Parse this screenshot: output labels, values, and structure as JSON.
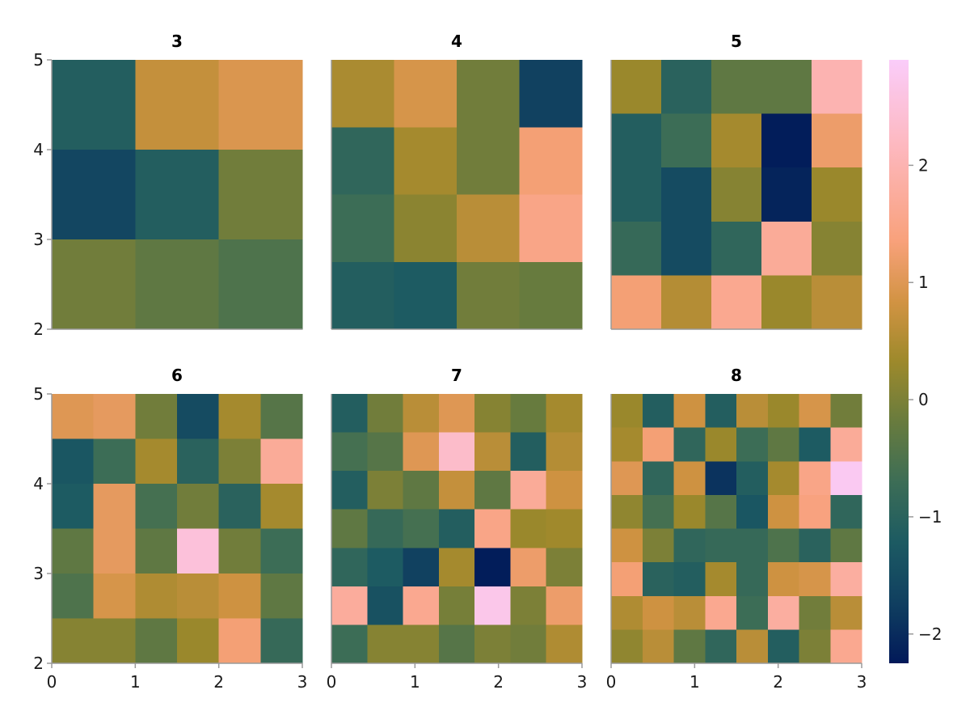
{
  "chart_data": [
    {
      "type": "heatmap",
      "title": "3",
      "n": 3,
      "xlim": [
        0,
        3
      ],
      "ylim": [
        2,
        5
      ],
      "xticks": [],
      "yticks": [
        "2",
        "3",
        "4",
        "5"
      ],
      "rows": [
        [
          -1.1,
          0.7,
          0.95
        ],
        [
          -1.6,
          -1.1,
          -0.1
        ],
        [
          -0.1,
          -0.3,
          -0.5
        ]
      ]
    },
    {
      "type": "heatmap",
      "title": "4",
      "n": 4,
      "xlim": [
        0,
        3
      ],
      "ylim": [
        2,
        5
      ],
      "xticks": [],
      "yticks": [],
      "rows": [
        [
          0.45,
          0.9,
          -0.1,
          -1.7
        ],
        [
          -0.9,
          0.4,
          -0.1,
          1.3
        ],
        [
          -0.7,
          0.15,
          0.6,
          1.5
        ],
        [
          -1.1,
          -1.2,
          -0.1,
          -0.2
        ]
      ]
    },
    {
      "type": "heatmap",
      "title": "5",
      "n": 5,
      "xlim": [
        0,
        3
      ],
      "ylim": [
        2,
        5
      ],
      "xticks": [],
      "yticks": [],
      "rows": [
        [
          0.3,
          -1.0,
          -0.3,
          -0.3,
          2.0
        ],
        [
          -1.1,
          -0.7,
          0.4,
          -2.2,
          1.2
        ],
        [
          -1.1,
          -1.5,
          0.1,
          -2.1,
          0.3
        ],
        [
          -0.8,
          -1.5,
          -0.9,
          1.7,
          0.1
        ],
        [
          1.3,
          0.55,
          1.6,
          0.3,
          0.6
        ]
      ]
    },
    {
      "type": "heatmap",
      "title": "6",
      "n": 6,
      "xlim": [
        0,
        3
      ],
      "ylim": [
        2,
        5
      ],
      "xticks": [
        "0",
        "1",
        "2",
        "3"
      ],
      "yticks": [
        "2",
        "3",
        "4",
        "5"
      ],
      "rows": [
        [
          1.0,
          1.1,
          -0.1,
          -1.5,
          0.4,
          -0.4
        ],
        [
          -1.3,
          -0.7,
          0.4,
          -1.0,
          0.0,
          1.7
        ],
        [
          -1.2,
          1.1,
          -0.6,
          -0.1,
          -1.0,
          0.4
        ],
        [
          -0.3,
          1.1,
          -0.3,
          2.5,
          -0.1,
          -0.7
        ],
        [
          -0.5,
          0.9,
          0.5,
          0.6,
          0.8,
          -0.3
        ],
        [
          0.1,
          0.1,
          -0.3,
          0.3,
          1.3,
          -0.8
        ]
      ]
    },
    {
      "type": "heatmap",
      "title": "7",
      "n": 7,
      "xlim": [
        0,
        3
      ],
      "ylim": [
        2,
        5
      ],
      "xticks": [
        "0",
        "1",
        "2",
        "3"
      ],
      "yticks": [],
      "rows": [
        [
          -1.1,
          -0.1,
          0.6,
          1.0,
          0.1,
          -0.2,
          0.4
        ],
        [
          -0.6,
          -0.4,
          1.0,
          2.3,
          0.6,
          -1.1,
          0.55
        ],
        [
          -1.1,
          0.0,
          -0.3,
          0.7,
          -0.3,
          1.7,
          0.8
        ],
        [
          -0.3,
          -0.8,
          -0.6,
          -1.1,
          1.5,
          0.3,
          0.35
        ],
        [
          -0.9,
          -1.2,
          -1.7,
          0.4,
          -2.2,
          1.2,
          0.0
        ],
        [
          1.75,
          -1.4,
          1.6,
          -0.05,
          2.7,
          0.0,
          1.2
        ],
        [
          -0.7,
          0.1,
          0.1,
          -0.4,
          0.0,
          -0.1,
          0.5
        ]
      ]
    },
    {
      "type": "heatmap",
      "title": "8",
      "n": 8,
      "xlim": [
        0,
        3
      ],
      "ylim": [
        2,
        5
      ],
      "xticks": [
        "0",
        "1",
        "2",
        "3"
      ],
      "yticks": [],
      "colorbar": {
        "ticks": [
          "−2",
          "−1",
          "0",
          "1",
          "2"
        ],
        "tick_values": [
          -2,
          -1,
          0,
          1,
          2
        ],
        "range": [
          -2.25,
          2.9
        ]
      },
      "rows": [
        [
          0.3,
          -1.1,
          0.8,
          -1.1,
          0.6,
          0.3,
          0.9,
          -0.1
        ],
        [
          0.4,
          1.3,
          -0.9,
          0.3,
          -0.7,
          -0.3,
          -1.2,
          1.7
        ],
        [
          1.0,
          -0.9,
          0.8,
          -1.9,
          -1.1,
          0.4,
          1.5,
          2.8
        ],
        [
          0.2,
          -0.6,
          0.3,
          -0.4,
          -1.3,
          0.8,
          1.4,
          -0.9
        ],
        [
          0.8,
          0.0,
          -0.9,
          -0.8,
          -0.8,
          -0.5,
          -1.0,
          -0.3
        ],
        [
          1.3,
          -1.0,
          -1.1,
          0.4,
          -0.8,
          0.8,
          0.9,
          1.8
        ],
        [
          0.5,
          0.8,
          0.6,
          1.6,
          -0.7,
          1.8,
          -0.1,
          0.6
        ],
        [
          0.2,
          0.6,
          -0.3,
          -0.9,
          0.6,
          -1.1,
          0.0,
          1.6
        ]
      ]
    }
  ]
}
